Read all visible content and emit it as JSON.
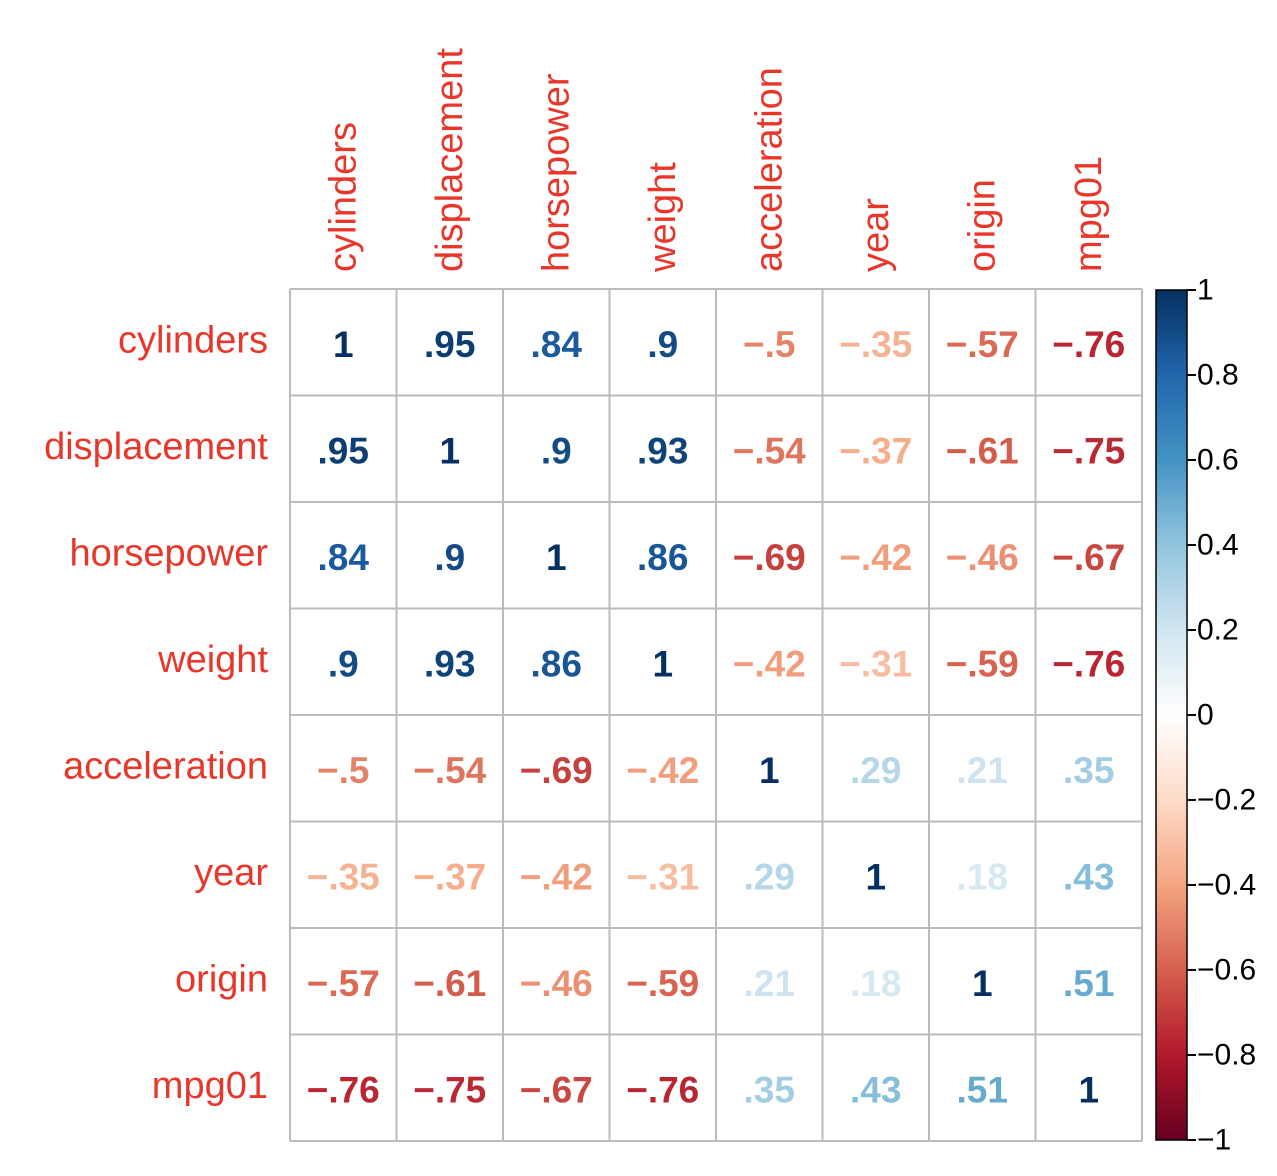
{
  "chart_data": {
    "type": "heatmap",
    "variables": [
      "cylinders",
      "displacement",
      "horsepower",
      "weight",
      "acceleration",
      "year",
      "origin",
      "mpg01"
    ],
    "matrix": [
      [
        1,
        0.95,
        0.84,
        0.9,
        -0.5,
        -0.35,
        -0.57,
        -0.76
      ],
      [
        0.95,
        1,
        0.9,
        0.93,
        -0.54,
        -0.37,
        -0.61,
        -0.75
      ],
      [
        0.84,
        0.9,
        1,
        0.86,
        -0.69,
        -0.42,
        -0.46,
        -0.67
      ],
      [
        0.9,
        0.93,
        0.86,
        1,
        -0.42,
        -0.31,
        -0.59,
        -0.76
      ],
      [
        -0.5,
        -0.54,
        -0.69,
        -0.42,
        1,
        0.29,
        0.21,
        0.35
      ],
      [
        -0.35,
        -0.37,
        -0.42,
        -0.31,
        0.29,
        1,
        0.18,
        0.43
      ],
      [
        -0.57,
        -0.61,
        -0.46,
        -0.59,
        0.21,
        0.18,
        1,
        0.51
      ],
      [
        -0.76,
        -0.75,
        -0.67,
        -0.76,
        0.35,
        0.43,
        0.51,
        1
      ]
    ],
    "colorbar": {
      "range": [
        -1,
        1
      ],
      "ticks": [
        1,
        0.8,
        0.6,
        0.4,
        0.2,
        0,
        -0.2,
        -0.4,
        -0.6,
        -0.8,
        -1
      ],
      "tick_labels": [
        "1",
        "0.8",
        "0.6",
        "0.4",
        "0.2",
        "0",
        "−0.2",
        "−0.4",
        "−0.6",
        "−0.8",
        "−1"
      ],
      "colors": [
        "#67001f",
        "#b2182b",
        "#d6604d",
        "#f4a582",
        "#fddbc7",
        "#ffffff",
        "#d1e5f0",
        "#92c5de",
        "#4393c3",
        "#2166ac",
        "#053061"
      ]
    },
    "label_color": "#e8372a",
    "grid_color": "#bbbbbb"
  }
}
